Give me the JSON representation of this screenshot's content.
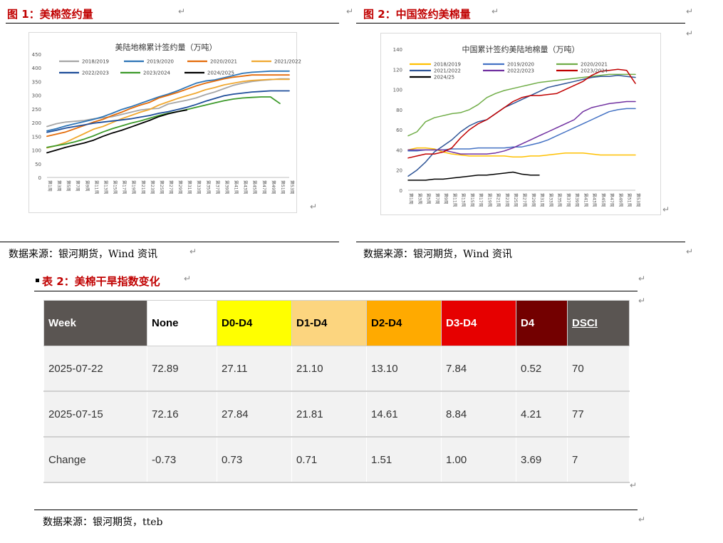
{
  "figure1": {
    "title": "图 1：美棉签约量",
    "source": "数据来源：银河期货，Wind 资讯"
  },
  "figure2": {
    "title": "图 2：中国签约美棉量",
    "source": "数据来源：银河期货，Wind 资讯"
  },
  "table2": {
    "title": "表 2：美棉干旱指数变化",
    "source": "数据来源：银河期货，tteb",
    "headers": [
      "Week",
      "None",
      "D0-D4",
      "D1-D4",
      "D2-D4",
      "D3-D4",
      "D4",
      "DSCI"
    ],
    "header_colors": [
      "#5a5552",
      "#ffffff",
      "#ffff00",
      "#fcd57f",
      "#ffaa00",
      "#e60000",
      "#730000",
      "#5a5552"
    ],
    "header_text_colors": [
      "#ffffff",
      "#000000",
      "#000000",
      "#000000",
      "#000000",
      "#ffffff",
      "#ffffff",
      "#ffffff"
    ],
    "rows": [
      [
        "2025-07-22",
        "72.89",
        "27.11",
        "21.10",
        "13.10",
        "7.84",
        "0.52",
        "70"
      ],
      [
        "2025-07-15",
        "72.16",
        "27.84",
        "21.81",
        "14.61",
        "8.84",
        "4.21",
        "77"
      ],
      [
        "Change",
        "-0.73",
        "0.73",
        "0.71",
        "1.51",
        "1.00",
        "3.69",
        "7"
      ]
    ]
  },
  "chart_data": [
    {
      "type": "line",
      "title": "美陆地棉累计签约量（万吨）",
      "xlabel": "",
      "ylabel": "",
      "ylim": [
        0,
        450
      ],
      "yticks": [
        0,
        50,
        100,
        150,
        200,
        250,
        300,
        350,
        400,
        450
      ],
      "x": [
        "第1周",
        "第3周",
        "第5周",
        "第7周",
        "第9周",
        "第11周",
        "第13周",
        "第15周",
        "第17周",
        "第19周",
        "第21周",
        "第23周",
        "第25周",
        "第27周",
        "第29周",
        "第31周",
        "第33周",
        "第35周",
        "第37周",
        "第39周",
        "第41周",
        "第43周",
        "第45周",
        "第47周",
        "第49周",
        "第51周",
        "第53周"
      ],
      "legend_position": "top",
      "series": [
        {
          "name": "2018/2019",
          "color": "#a6a6a6",
          "values": [
            186,
            196,
            202,
            205,
            208,
            214,
            218,
            222,
            230,
            238,
            246,
            250,
            252,
            268,
            275,
            282,
            290,
            302,
            312,
            324,
            336,
            344,
            350,
            354,
            357,
            360,
            360
          ]
        },
        {
          "name": "2019/2020",
          "color": "#2e75b6",
          "values": [
            170,
            178,
            188,
            196,
            204,
            212,
            222,
            234,
            248,
            258,
            270,
            282,
            294,
            304,
            316,
            330,
            344,
            352,
            356,
            364,
            372,
            380,
            384,
            386,
            388,
            388,
            388
          ]
        },
        {
          "name": "2020/2021",
          "color": "#e46c0a",
          "values": [
            150,
            158,
            166,
            178,
            190,
            202,
            212,
            226,
            238,
            252,
            264,
            274,
            290,
            300,
            310,
            322,
            334,
            344,
            352,
            360,
            366,
            370,
            374,
            374,
            374,
            374,
            374
          ]
        },
        {
          "name": "2021/2022",
          "color": "#f0a830",
          "values": [
            108,
            116,
            128,
            144,
            160,
            176,
            186,
            200,
            214,
            226,
            238,
            248,
            264,
            276,
            288,
            298,
            308,
            320,
            328,
            338,
            344,
            350,
            354,
            356,
            358,
            358,
            358
          ]
        },
        {
          "name": "2022/2023",
          "color": "#1f4e9a",
          "values": [
            165,
            172,
            180,
            186,
            192,
            198,
            202,
            206,
            210,
            214,
            220,
            226,
            234,
            240,
            248,
            256,
            266,
            278,
            288,
            298,
            304,
            308,
            312,
            314,
            316,
            316,
            316
          ]
        },
        {
          "name": "2023/2024",
          "color": "#3d9a2b",
          "values": [
            110,
            116,
            122,
            130,
            140,
            152,
            166,
            178,
            188,
            198,
            206,
            216,
            226,
            234,
            240,
            248,
            256,
            264,
            272,
            280,
            286,
            290,
            292,
            294,
            294,
            270,
            null
          ]
        },
        {
          "name": "2024/2025",
          "color": "#000000",
          "values": [
            90,
            100,
            110,
            118,
            126,
            136,
            150,
            162,
            172,
            184,
            196,
            208,
            222,
            232,
            240,
            246,
            null,
            null,
            null,
            null,
            null,
            null,
            null,
            null,
            null,
            null,
            null
          ]
        }
      ]
    },
    {
      "type": "line",
      "title": "中国累计签约美陆地棉量（万吨）",
      "xlabel": "",
      "ylabel": "",
      "ylim": [
        0,
        140
      ],
      "yticks": [
        0,
        20,
        40,
        60,
        80,
        100,
        120,
        140
      ],
      "x": [
        "第1周",
        "第3周",
        "第5周",
        "第7周",
        "第9周",
        "第11周",
        "第13周",
        "第15周",
        "第17周",
        "第19周",
        "第21周",
        "第23周",
        "第25周",
        "第27周",
        "第29周",
        "第31周",
        "第33周",
        "第35周",
        "第37周",
        "第39周",
        "第41周",
        "第43周",
        "第45周",
        "第47周",
        "第49周",
        "第51周",
        "第53周"
      ],
      "legend_position": "top",
      "series": [
        {
          "name": "2018/2019",
          "color": "#ffc000",
          "values": [
            40,
            42,
            42,
            41,
            38,
            36,
            35,
            34,
            34,
            34,
            34,
            34,
            33,
            33,
            34,
            34,
            35,
            36,
            37,
            37,
            37,
            36,
            35,
            35,
            35,
            35,
            35
          ]
        },
        {
          "name": "2019/2020",
          "color": "#4472c4",
          "values": [
            39,
            39,
            40,
            40,
            40,
            41,
            41,
            41,
            42,
            42,
            42,
            42,
            43,
            43,
            45,
            47,
            50,
            54,
            58,
            62,
            66,
            70,
            74,
            78,
            80,
            81,
            81
          ]
        },
        {
          "name": "2020/2021",
          "color": "#70ad47",
          "values": [
            54,
            58,
            68,
            72,
            74,
            76,
            77,
            80,
            85,
            92,
            96,
            99,
            101,
            103,
            105,
            107,
            108,
            109,
            110,
            111,
            112,
            113,
            114,
            115,
            115,
            115,
            115
          ]
        },
        {
          "name": "2021/2022",
          "color": "#2f5597",
          "values": [
            14,
            20,
            28,
            38,
            44,
            50,
            58,
            64,
            68,
            70,
            76,
            82,
            86,
            90,
            94,
            98,
            102,
            104,
            106,
            108,
            110,
            112,
            113,
            113,
            114,
            113,
            112
          ]
        },
        {
          "name": "2022/2023",
          "color": "#7030a0",
          "values": [
            40,
            40,
            40,
            40,
            40,
            38,
            36,
            36,
            36,
            36,
            37,
            39,
            42,
            46,
            50,
            54,
            58,
            62,
            66,
            70,
            78,
            82,
            84,
            86,
            87,
            88,
            88
          ]
        },
        {
          "name": "2023/2024",
          "color": "#c00000",
          "values": [
            32,
            34,
            36,
            36,
            38,
            42,
            52,
            60,
            66,
            70,
            76,
            82,
            88,
            92,
            94,
            94,
            95,
            96,
            100,
            104,
            108,
            114,
            118,
            119,
            120,
            119,
            106
          ]
        },
        {
          "name": "2024/25",
          "color": "#000000",
          "values": [
            10,
            10,
            10,
            11,
            11,
            12,
            13,
            14,
            15,
            15,
            16,
            17,
            18,
            16,
            15,
            15,
            null,
            null,
            null,
            null,
            null,
            null,
            null,
            null,
            null,
            null,
            null
          ]
        }
      ]
    }
  ]
}
